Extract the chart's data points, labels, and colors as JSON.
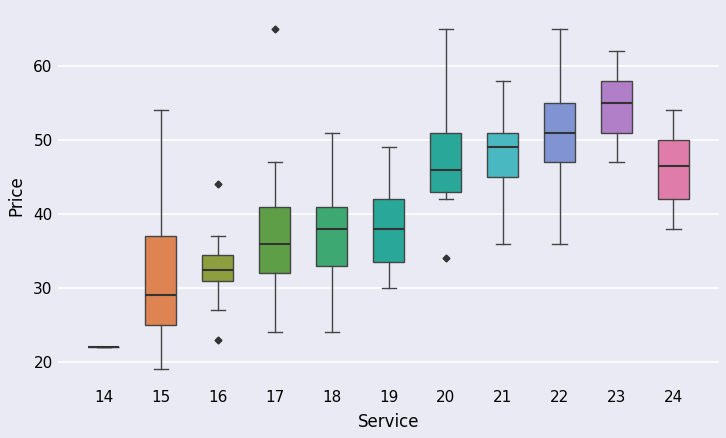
{
  "title": "",
  "xlabel": "Service",
  "ylabel": "Price",
  "background_color": "#eaeaf4",
  "fig_bg": "#eaeaf4",
  "box_colors": [
    "#dd8452",
    "#dd8452",
    "#8c9e3e",
    "#5e9e47",
    "#3da872",
    "#29a899",
    "#29a899",
    "#4ab8c0",
    "#8094d4",
    "#b07fc8",
    "#e07caa"
  ],
  "boxes": [
    {
      "service": 14,
      "min": 22.0,
      "q1": 22.0,
      "median": 22.0,
      "q3": 22.0,
      "max": 22.0,
      "outliers": []
    },
    {
      "service": 15,
      "min": 19.0,
      "q1": 25.0,
      "median": 29.0,
      "q3": 37.0,
      "max": 54.0,
      "outliers": []
    },
    {
      "service": 16,
      "min": 27.0,
      "q1": 31.0,
      "median": 32.5,
      "q3": 34.5,
      "max": 37.0,
      "outliers": [
        23.0,
        44.0
      ]
    },
    {
      "service": 17,
      "min": 24.0,
      "q1": 32.0,
      "median": 36.0,
      "q3": 41.0,
      "max": 47.0,
      "outliers": [
        65.0
      ]
    },
    {
      "service": 18,
      "min": 24.0,
      "q1": 33.0,
      "median": 38.0,
      "q3": 41.0,
      "max": 51.0,
      "outliers": []
    },
    {
      "service": 19,
      "min": 30.0,
      "q1": 33.5,
      "median": 38.0,
      "q3": 42.0,
      "max": 49.0,
      "outliers": []
    },
    {
      "service": 20,
      "min": 42.0,
      "q1": 43.0,
      "median": 46.0,
      "q3": 51.0,
      "max": 65.0,
      "outliers": [
        34.0
      ]
    },
    {
      "service": 21,
      "min": 36.0,
      "q1": 45.0,
      "median": 49.0,
      "q3": 51.0,
      "max": 58.0,
      "outliers": []
    },
    {
      "service": 22,
      "min": 36.0,
      "q1": 47.0,
      "median": 51.0,
      "q3": 55.0,
      "max": 65.0,
      "outliers": []
    },
    {
      "service": 23,
      "min": 47.0,
      "q1": 51.0,
      "median": 55.0,
      "q3": 58.0,
      "max": 62.0,
      "outliers": []
    },
    {
      "service": 24,
      "min": 38.0,
      "q1": 42.0,
      "median": 46.5,
      "q3": 50.0,
      "max": 54.0,
      "outliers": []
    }
  ],
  "ylim": [
    17,
    68
  ],
  "yticks": [
    20,
    30,
    40,
    50,
    60
  ],
  "xlim": [
    13.2,
    24.8
  ]
}
